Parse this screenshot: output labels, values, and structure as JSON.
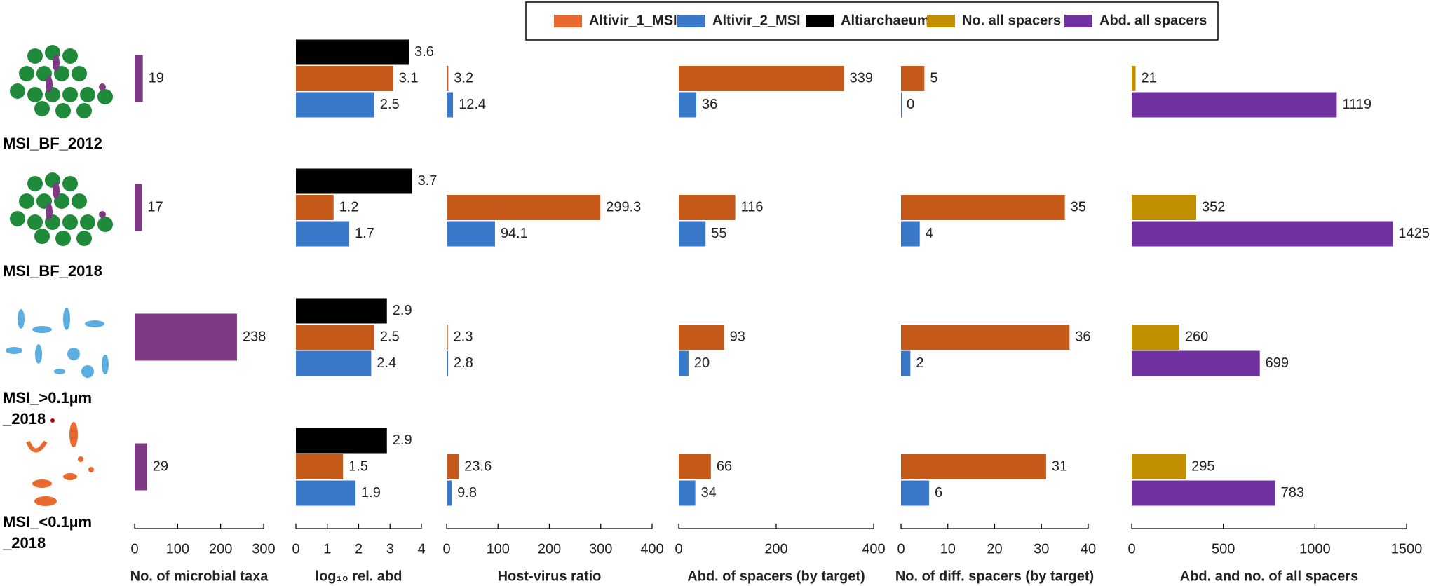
{
  "rows": [
    "MSI_BF_2012",
    "MSI_BF_2018",
    "MSI_>0.1µm\n_2018",
    "MSI_<0.1µm\n_2018"
  ],
  "legend": [
    {
      "name": "Altivir_1_MSI",
      "color": "#e8692e"
    },
    {
      "name": "Altivir_2_MSI",
      "color": "#3a78c9"
    },
    {
      "name": "Altiarchaeum",
      "color": "#000000"
    },
    {
      "name": "No. all spacers",
      "color": "#c18f00"
    },
    {
      "name": "Abd. all spacers",
      "color": "#7030a0"
    }
  ],
  "chart_data": [
    {
      "type": "bar",
      "orientation": "horizontal",
      "xlabel": "No. of microbial taxa",
      "xlim": [
        0,
        300
      ],
      "xticks": [
        0,
        100,
        200,
        300
      ],
      "series": [
        {
          "color": "#7f3a86",
          "values": [
            19,
            17,
            238,
            29
          ]
        }
      ]
    },
    {
      "type": "bar",
      "orientation": "horizontal",
      "xlabel": "log₁₀ rel. abd",
      "xlim": [
        0,
        4
      ],
      "xticks": [
        0,
        1,
        2,
        3,
        4
      ],
      "series": [
        {
          "color": "#000000",
          "values": [
            3.6,
            3.7,
            2.9,
            2.9
          ]
        },
        {
          "color": "#c55a1a",
          "values": [
            3.1,
            1.2,
            2.5,
            1.5
          ]
        },
        {
          "color": "#3a78c9",
          "values": [
            2.5,
            1.7,
            2.4,
            1.9
          ]
        }
      ]
    },
    {
      "type": "bar",
      "orientation": "horizontal",
      "xlabel": "Host-virus ratio",
      "xlim": [
        0,
        400
      ],
      "xticks": [
        0,
        100,
        200,
        300,
        400
      ],
      "series": [
        {
          "color": "#c55a1a",
          "values": [
            3.2,
            299.3,
            2.3,
            23.6
          ]
        },
        {
          "color": "#3a78c9",
          "values": [
            12.4,
            94.1,
            2.8,
            9.8
          ]
        }
      ]
    },
    {
      "type": "bar",
      "orientation": "horizontal",
      "xlabel": "Abd. of spacers (by target)",
      "xlim": [
        0,
        400
      ],
      "xticks": [
        0,
        200,
        400
      ],
      "series": [
        {
          "color": "#c55a1a",
          "values": [
            339,
            116,
            93,
            66
          ]
        },
        {
          "color": "#3a78c9",
          "values": [
            36,
            55,
            20,
            34
          ]
        }
      ]
    },
    {
      "type": "bar",
      "orientation": "horizontal",
      "xlabel": "No. of diff. spacers (by target)",
      "xlim": [
        0,
        40
      ],
      "xticks": [
        0,
        10,
        20,
        30,
        40
      ],
      "series": [
        {
          "color": "#c55a1a",
          "values": [
            5,
            35,
            36,
            31
          ]
        },
        {
          "color": "#3a78c9",
          "values": [
            0,
            4,
            2,
            6
          ]
        }
      ]
    },
    {
      "type": "bar",
      "orientation": "horizontal",
      "xlabel": "Abd. and no. of all spacers",
      "xlim": [
        0,
        1500
      ],
      "xticks": [
        0,
        500,
        1000,
        1500
      ],
      "series": [
        {
          "color": "#c18f00",
          "values": [
            21,
            352,
            260,
            295
          ]
        },
        {
          "color": "#7030a0",
          "values": [
            1119,
            1425,
            699,
            783
          ]
        }
      ]
    }
  ]
}
